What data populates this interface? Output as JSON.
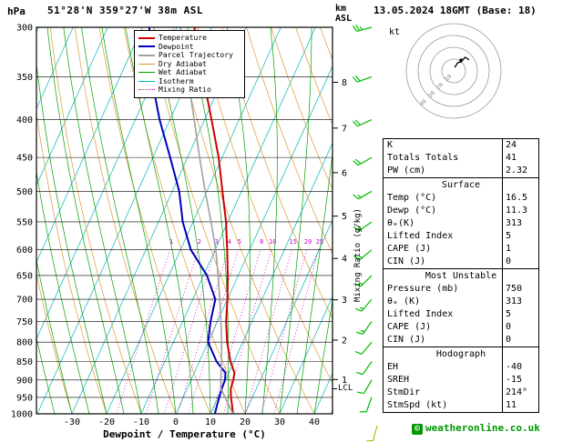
{
  "header": {
    "pressure_unit": "hPa",
    "title": "51°28'N 359°27'W 38m ASL",
    "datetime": "13.05.2024 18GMT (Base: 18)"
  },
  "labels": {
    "km": "km",
    "asl": "ASL",
    "lcl": "LCL",
    "mixing_ratio": "Mixing Ratio (g/kg)"
  },
  "colors": {
    "temperature": "#cc0000",
    "dewpoint": "#0000bb",
    "parcel": "#a0a0a0",
    "dry_adiabat": "#dd9933",
    "wet_adiabat": "#00a000",
    "isotherm": "#00b4b4",
    "mixing_ratio": "#cc00cc",
    "wind_barb": "#00bb00",
    "surface_barb": "#b8b800",
    "grid": "#000000",
    "copyright": "#009900"
  },
  "legend": [
    {
      "label": "Temperature",
      "color": "#cc0000",
      "width": 2,
      "dash": false
    },
    {
      "label": "Dewpoint",
      "color": "#0000bb",
      "width": 2,
      "dash": false
    },
    {
      "label": "Parcel Trajectory",
      "color": "#a0a0a0",
      "width": 2,
      "dash": false
    },
    {
      "label": "Dry Adiabat",
      "color": "#dd9933",
      "width": 1,
      "dash": false
    },
    {
      "label": "Wet Adiabat",
      "color": "#00a000",
      "width": 1,
      "dash": false
    },
    {
      "label": "Isotherm",
      "color": "#00b4b4",
      "width": 1,
      "dash": false
    },
    {
      "label": "Mixing Ratio",
      "color": "#cc00cc",
      "width": 1,
      "dash": true
    }
  ],
  "chart_data": {
    "type": "line",
    "chart_kind": "skew-t log-p sounding",
    "x_axis": {
      "label": "Dewpoint / Temperature (°C)",
      "ticks": [
        -30,
        -20,
        -10,
        0,
        10,
        20,
        30,
        40
      ]
    },
    "y_axis": {
      "label": "hPa",
      "scale": "log",
      "ticks": [
        300,
        350,
        400,
        450,
        500,
        550,
        600,
        650,
        700,
        750,
        800,
        850,
        900,
        950,
        1000
      ]
    },
    "secondary_y_axis": {
      "label": "km ASL",
      "ticks": [
        1,
        2,
        3,
        4,
        5,
        6,
        7,
        8
      ]
    },
    "mixing_ratio_lines": [
      1,
      2,
      3,
      4,
      5,
      8,
      10,
      15,
      20,
      25
    ],
    "lcl_pressure": 925,
    "background": {
      "isotherm_step": 10,
      "dry_adiabat_step": 10,
      "wet_adiabat_step": 5
    },
    "series": [
      {
        "name": "Temperature",
        "color": "#cc0000",
        "width": 2,
        "points": [
          [
            1000,
            16.5
          ],
          [
            975,
            15.2
          ],
          [
            950,
            13.8
          ],
          [
            925,
            12.6
          ],
          [
            900,
            12.2
          ],
          [
            880,
            11.6
          ],
          [
            850,
            9.0
          ],
          [
            800,
            5.5
          ],
          [
            750,
            2.5
          ],
          [
            700,
            0.0
          ],
          [
            650,
            -3.0
          ],
          [
            600,
            -6.5
          ],
          [
            550,
            -10.5
          ],
          [
            500,
            -15.5
          ],
          [
            450,
            -21.0
          ],
          [
            400,
            -28.0
          ],
          [
            350,
            -36.0
          ],
          [
            300,
            -45.0
          ]
        ]
      },
      {
        "name": "Dewpoint",
        "color": "#0000bb",
        "width": 2,
        "points": [
          [
            1000,
            11.3
          ],
          [
            975,
            10.8
          ],
          [
            950,
            10.4
          ],
          [
            925,
            10.0
          ],
          [
            900,
            9.8
          ],
          [
            880,
            9.0
          ],
          [
            850,
            5.0
          ],
          [
            800,
            0.0
          ],
          [
            750,
            -2.0
          ],
          [
            700,
            -3.5
          ],
          [
            650,
            -9.0
          ],
          [
            600,
            -17.0
          ],
          [
            550,
            -23.0
          ],
          [
            500,
            -28.0
          ],
          [
            450,
            -35.0
          ],
          [
            400,
            -43.0
          ],
          [
            350,
            -51.0
          ],
          [
            300,
            -58.0
          ]
        ]
      },
      {
        "name": "Parcel Trajectory",
        "color": "#a0a0a0",
        "width": 1.6,
        "points": [
          [
            1000,
            16.5
          ],
          [
            925,
            9.8
          ],
          [
            900,
            8.6
          ],
          [
            850,
            6.4
          ],
          [
            800,
            3.9
          ],
          [
            750,
            1.0
          ],
          [
            700,
            -2.2
          ],
          [
            650,
            -5.8
          ],
          [
            600,
            -9.8
          ],
          [
            550,
            -14.8
          ],
          [
            500,
            -20.5
          ],
          [
            450,
            -26.5
          ],
          [
            400,
            -33.0
          ],
          [
            350,
            -40.5
          ],
          [
            300,
            -49.0
          ]
        ]
      }
    ],
    "winds": [
      {
        "p": 300,
        "dir": 255,
        "spd": 25
      },
      {
        "p": 350,
        "dir": 250,
        "spd": 20
      },
      {
        "p": 400,
        "dir": 245,
        "spd": 20
      },
      {
        "p": 450,
        "dir": 240,
        "spd": 20
      },
      {
        "p": 500,
        "dir": 240,
        "spd": 15
      },
      {
        "p": 550,
        "dir": 235,
        "spd": 15
      },
      {
        "p": 600,
        "dir": 230,
        "spd": 15
      },
      {
        "p": 650,
        "dir": 225,
        "spd": 15
      },
      {
        "p": 700,
        "dir": 220,
        "spd": 15
      },
      {
        "p": 750,
        "dir": 215,
        "spd": 15
      },
      {
        "p": 800,
        "dir": 220,
        "spd": 10
      },
      {
        "p": 850,
        "dir": 215,
        "spd": 10
      },
      {
        "p": 900,
        "dir": 210,
        "spd": 10
      },
      {
        "p": 950,
        "dir": 200,
        "spd": 10
      },
      {
        "p": 1000,
        "dir": 195,
        "spd": 10,
        "surface": true
      }
    ]
  },
  "hodograph": {
    "kt_label": "kt",
    "rings": [
      10,
      20,
      30,
      40
    ],
    "trace": [
      [
        0.9,
        3.0
      ],
      [
        3.4,
        6.9
      ],
      [
        6.4,
        7.7
      ],
      [
        9.6,
        11.5
      ],
      [
        13.0,
        9.5
      ]
    ],
    "storm_motion_uv": [
      6.2,
      9.1
    ]
  },
  "table": {
    "sections": [
      {
        "header": null,
        "rows": [
          [
            "K",
            "24"
          ],
          [
            "Totals Totals",
            "41"
          ],
          [
            "PW (cm)",
            "2.32"
          ]
        ]
      },
      {
        "header": "Surface",
        "rows": [
          [
            "Temp (°C)",
            "16.5"
          ],
          [
            "Dewp (°C)",
            "11.3"
          ],
          [
            "θₑ(K)",
            "313"
          ],
          [
            "Lifted Index",
            "5"
          ],
          [
            "CAPE (J)",
            "1"
          ],
          [
            "CIN (J)",
            "0"
          ]
        ]
      },
      {
        "header": "Most Unstable",
        "rows": [
          [
            "Pressure (mb)",
            "750"
          ],
          [
            "θₑ (K)",
            "313"
          ],
          [
            "Lifted Index",
            "5"
          ],
          [
            "CAPE (J)",
            "0"
          ],
          [
            "CIN (J)",
            "0"
          ]
        ]
      },
      {
        "header": "Hodograph",
        "rows": [
          [
            "EH",
            "-40"
          ],
          [
            "SREH",
            "-15"
          ],
          [
            "StmDir",
            "214°"
          ],
          [
            "StmSpd (kt)",
            "11"
          ]
        ]
      }
    ]
  },
  "footer": {
    "copyright_symbol": "©",
    "copyright_text": "weatheronline.co.uk"
  }
}
